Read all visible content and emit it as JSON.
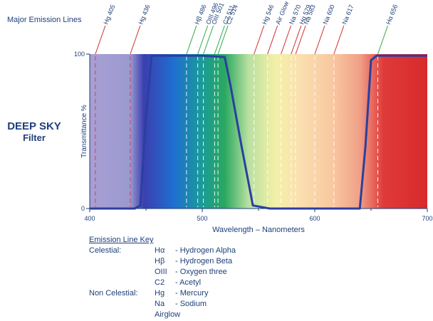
{
  "header": {
    "emission_lines_label": "Major Emission Lines"
  },
  "filter": {
    "name_line1": "DEEP SKY",
    "name_line2": "Filter"
  },
  "colors": {
    "curve": "#2a3fa0",
    "celestial_line": "#2fa84a",
    "non_celestial_line": "#d42a2a",
    "dashed_line": "#ffffff",
    "text": "#1f3f7a"
  },
  "chart_data": {
    "type": "line",
    "title": "",
    "xlabel": "Wavelength – Nanometers",
    "ylabel": "Transmittance %",
    "xlim": [
      400,
      700
    ],
    "ylim": [
      0,
      100
    ],
    "x_ticks": [
      400,
      500,
      600,
      700
    ],
    "x_minor_ticks": [
      450,
      550,
      650
    ],
    "y_ticks": [
      0,
      100
    ],
    "spectrum_background": true,
    "series": [
      {
        "x": [
          400,
          440,
          445,
          450,
          455,
          500,
          520,
          525,
          535,
          545,
          560,
          600,
          640,
          645,
          650,
          655,
          700
        ],
        "y": [
          0,
          0,
          2,
          60,
          99,
          99,
          98,
          80,
          40,
          2,
          0,
          0,
          0,
          40,
          96,
          99,
          99
        ]
      }
    ],
    "emission_lines": [
      {
        "label": "Hg 405",
        "wavelength": 405,
        "type": "non-celestial"
      },
      {
        "label": "Hg 436",
        "wavelength": 436,
        "type": "non-celestial"
      },
      {
        "label": "Hβ 486",
        "wavelength": 486,
        "type": "celestial"
      },
      {
        "label": "OIII 496",
        "wavelength": 496,
        "type": "celestial"
      },
      {
        "label": "OIII 501",
        "wavelength": 501,
        "type": "celestial"
      },
      {
        "label": "C2 511",
        "wavelength": 511,
        "type": "celestial"
      },
      {
        "label": "C2 514",
        "wavelength": 514,
        "type": "celestial"
      },
      {
        "label": "Hg 546",
        "wavelength": 546,
        "type": "non-celestial"
      },
      {
        "label": "Air Glow",
        "wavelength": 558,
        "type": "non-celestial"
      },
      {
        "label": "Na 570",
        "wavelength": 570,
        "type": "non-celestial"
      },
      {
        "label": "Hg 579",
        "wavelength": 579,
        "type": "non-celestial"
      },
      {
        "label": "Na 583",
        "wavelength": 583,
        "type": "non-celestial"
      },
      {
        "label": "Na 600",
        "wavelength": 600,
        "type": "non-celestial"
      },
      {
        "label": "Na 617",
        "wavelength": 617,
        "type": "non-celestial"
      },
      {
        "label": "Hα 656",
        "wavelength": 656,
        "type": "celestial"
      }
    ]
  },
  "key": {
    "title": "Emission Line Key",
    "rows": [
      {
        "category": "Celestial:",
        "symbol": "Hα",
        "desc": "- Hydrogen Alpha"
      },
      {
        "category": "",
        "symbol": "Hβ",
        "desc": "- Hydrogen Beta"
      },
      {
        "category": "",
        "symbol": "OIII",
        "desc": "- Oxygen three"
      },
      {
        "category": "",
        "symbol": "C2",
        "desc": "- Acetyl"
      },
      {
        "category": "Non Celestial:",
        "symbol": "Hg",
        "desc": "- Mercury"
      },
      {
        "category": "",
        "symbol": "Na",
        "desc": "- Sodium"
      },
      {
        "category": "",
        "symbol": "Airglow",
        "desc": ""
      }
    ]
  }
}
